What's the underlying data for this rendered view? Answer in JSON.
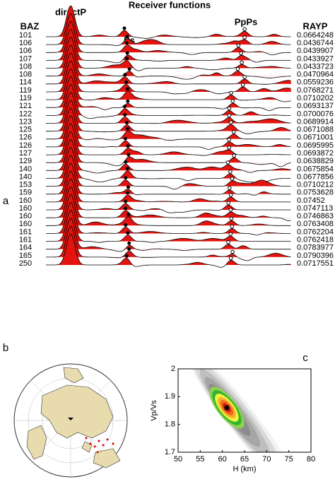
{
  "panel_labels": [
    "a",
    "b",
    "c"
  ],
  "chart_data": [
    {
      "type": "wiggle",
      "title": "Receiver functions",
      "left_header": "BAZ",
      "right_header": "RAYP",
      "phases": [
        "directP",
        "Ps",
        "PpPs"
      ],
      "baz": [
        101,
        106,
        106,
        107,
        108,
        108,
        114,
        119,
        119,
        121,
        122,
        123,
        125,
        126,
        126,
        127,
        129,
        140,
        140,
        153,
        159,
        160,
        160,
        160,
        160,
        161,
        161,
        164,
        165,
        250
      ],
      "rayp": [
        "0.0664248",
        "0.0436744",
        "0.0439907",
        "0.0433927",
        "0.0433723",
        "0.0470964",
        "0.0559236",
        "0.0768271",
        "0.0710202",
        "0.0693137",
        "0.0700076",
        "0.0689914",
        "0.0671088",
        "0.0671001",
        "0.0695995",
        "0.0693872",
        "0.0638829",
        "0.0675854",
        "0.0677856",
        "0.0710212",
        "0.0753628",
        "0.07452",
        "0.0747113",
        "0.0746863",
        "0.0763408",
        "0.0762204",
        "0.0762418",
        "0.0783977",
        "0.0790396",
        "0.0717551"
      ]
    },
    {
      "type": "contour",
      "xlabel": "H (km)",
      "ylabel": "Vp/Vs",
      "xlim": [
        50,
        80
      ],
      "xticks": [
        50,
        55,
        60,
        65,
        70,
        75,
        80
      ],
      "ylim": [
        1.7,
        2
      ],
      "yticks": [
        1.7,
        1.8,
        1.9,
        2
      ],
      "peak": {
        "x": 61,
        "y": 1.86
      }
    }
  ]
}
